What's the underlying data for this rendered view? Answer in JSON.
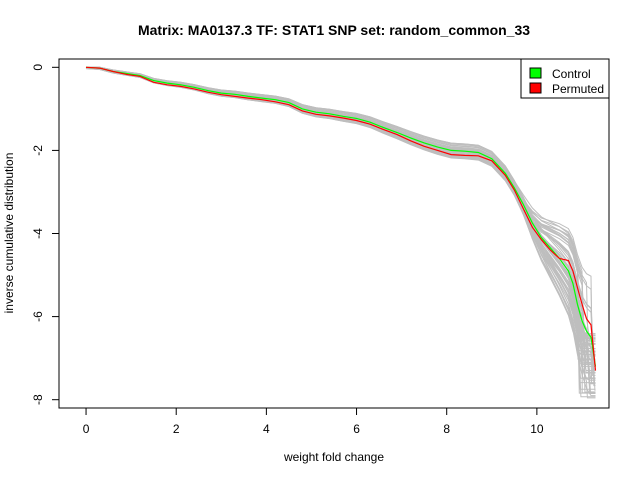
{
  "chart_data": {
    "type": "line",
    "title": "Matrix: MA0137.3 TF: STAT1 SNP set: random_common_33",
    "xlabel": "weight fold change",
    "ylabel": "inverse cumulative distribution",
    "xlim": [
      -0.6,
      11.6
    ],
    "ylim": [
      -8.2,
      0.2
    ],
    "x_ticks": [
      0,
      2,
      4,
      6,
      8,
      10
    ],
    "y_ticks": [
      0,
      -2,
      -4,
      -6,
      -8
    ],
    "grid": false,
    "legend_position": "top-right",
    "colors": {
      "control": "#00ff00",
      "permuted": "#ff0000",
      "background": "#bebebe"
    },
    "series": [
      {
        "name": "Control",
        "x": [
          0,
          0.3,
          0.6,
          0.9,
          1.2,
          1.5,
          1.8,
          2.1,
          2.4,
          2.7,
          3.0,
          3.3,
          3.6,
          3.9,
          4.2,
          4.5,
          4.8,
          5.1,
          5.4,
          5.7,
          6.0,
          6.3,
          6.6,
          6.9,
          7.2,
          7.5,
          7.8,
          8.1,
          8.4,
          8.7,
          9.0,
          9.3,
          9.5,
          9.7,
          9.9,
          10.1,
          10.3,
          10.5,
          10.7,
          10.8,
          10.9,
          11.0,
          11.1,
          11.2,
          11.3
        ],
        "y": [
          0,
          -0.02,
          -0.1,
          -0.15,
          -0.2,
          -0.32,
          -0.38,
          -0.42,
          -0.48,
          -0.56,
          -0.62,
          -0.65,
          -0.7,
          -0.74,
          -0.78,
          -0.85,
          -1.0,
          -1.08,
          -1.12,
          -1.18,
          -1.23,
          -1.32,
          -1.45,
          -1.57,
          -1.7,
          -1.82,
          -1.92,
          -2.0,
          -2.02,
          -2.05,
          -2.2,
          -2.55,
          -2.9,
          -3.3,
          -3.75,
          -4.1,
          -4.35,
          -4.6,
          -4.9,
          -5.2,
          -5.7,
          -6.1,
          -6.35,
          -6.5,
          -7.2
        ]
      },
      {
        "name": "Permuted",
        "x": [
          0,
          0.3,
          0.6,
          0.9,
          1.2,
          1.5,
          1.8,
          2.1,
          2.4,
          2.7,
          3.0,
          3.3,
          3.6,
          3.9,
          4.2,
          4.5,
          4.8,
          5.1,
          5.4,
          5.7,
          6.0,
          6.3,
          6.6,
          6.9,
          7.2,
          7.5,
          7.8,
          8.1,
          8.4,
          8.7,
          9.0,
          9.3,
          9.5,
          9.7,
          9.9,
          10.1,
          10.3,
          10.5,
          10.7,
          10.8,
          10.9,
          11.0,
          11.1,
          11.2,
          11.3
        ],
        "y": [
          0,
          -0.02,
          -0.1,
          -0.17,
          -0.22,
          -0.36,
          -0.42,
          -0.46,
          -0.52,
          -0.6,
          -0.66,
          -0.7,
          -0.74,
          -0.78,
          -0.83,
          -0.9,
          -1.05,
          -1.13,
          -1.17,
          -1.22,
          -1.28,
          -1.37,
          -1.5,
          -1.62,
          -1.77,
          -1.9,
          -2.0,
          -2.1,
          -2.12,
          -2.13,
          -2.25,
          -2.6,
          -2.95,
          -3.4,
          -3.85,
          -4.15,
          -4.4,
          -4.6,
          -4.65,
          -4.9,
          -5.3,
          -5.7,
          -6.05,
          -6.2,
          -7.3
        ]
      }
    ],
    "background_series_count": 60,
    "legend": {
      "entries": [
        "Control",
        "Permuted"
      ]
    }
  }
}
